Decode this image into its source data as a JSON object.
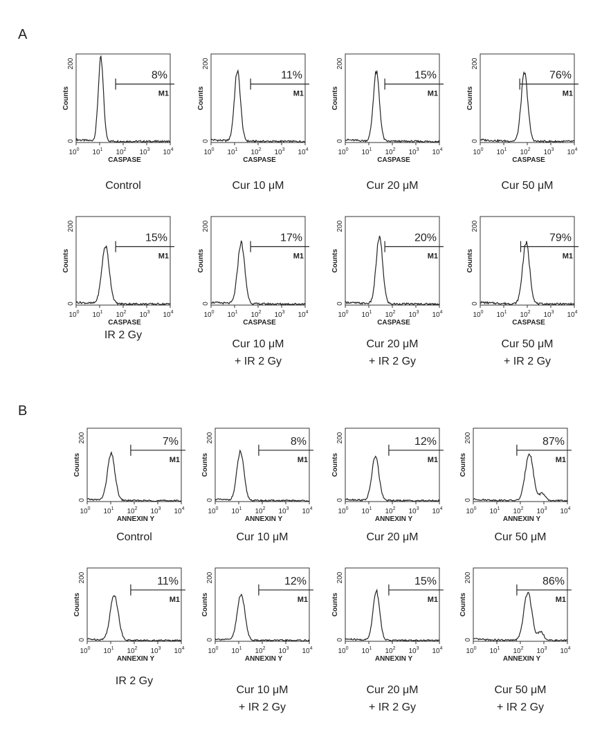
{
  "panels": [
    {
      "letter": "A",
      "rows": [
        {
          "plots": [
            {
              "pct": "8%",
              "gate": "M1",
              "caption": [
                "Control"
              ],
              "peak": 1.05,
              "height": 0.93,
              "width": 0.11,
              "shoulder": 0
            },
            {
              "pct": "11%",
              "gate": "M1",
              "caption": [
                "Cur 10 μM"
              ],
              "peak": 1.12,
              "height": 0.79,
              "width": 0.13,
              "shoulder": 0
            },
            {
              "pct": "15%",
              "gate": "M1",
              "caption": [
                "Cur 20 μM"
              ],
              "peak": 1.32,
              "height": 0.78,
              "width": 0.13,
              "shoulder": 0
            },
            {
              "pct": "76%",
              "gate": "M1",
              "caption": [
                "Cur 50 μM"
              ],
              "peak": 1.88,
              "height": 0.77,
              "width": 0.14,
              "shoulder": 0
            }
          ]
        },
        {
          "plots": [
            {
              "pct": "15%",
              "gate": "M1",
              "caption": [
                "IR 2 Gy"
              ],
              "peak": 1.25,
              "height": 0.65,
              "width": 0.16,
              "shoulder": 0
            },
            {
              "pct": "17%",
              "gate": "M1",
              "caption": [
                "Cur 10 μM",
                "+ IR 2 Gy"
              ],
              "peak": 1.28,
              "height": 0.69,
              "width": 0.15,
              "shoulder": 0
            },
            {
              "pct": "20%",
              "gate": "M1",
              "caption": [
                "Cur 20 μM",
                "+ IR 2 Gy"
              ],
              "peak": 1.45,
              "height": 0.75,
              "width": 0.14,
              "shoulder": 0
            },
            {
              "pct": "79%",
              "gate": "M1",
              "caption": [
                "Cur 50 μM",
                "+ IR 2 Gy"
              ],
              "peak": 1.95,
              "height": 0.69,
              "width": 0.15,
              "shoulder": 0
            }
          ]
        }
      ],
      "axes": {
        "ylabel": "Counts",
        "xlabel": "CASPASE",
        "y_ticks": [
          "0",
          "200"
        ],
        "x_tick_base": "10",
        "x_tick_exponents": [
          "0",
          "1",
          "2",
          "3",
          "4"
        ],
        "gate_start": [
          1.68,
          1.68,
          1.68,
          1.68,
          1.68,
          1.68,
          1.68,
          1.72
        ]
      }
    },
    {
      "letter": "B",
      "rows": [
        {
          "plots": [
            {
              "pct": "7%",
              "gate": "M1",
              "caption": [
                "Control"
              ],
              "peak": 1.02,
              "height": 0.63,
              "width": 0.16,
              "shoulder": 0
            },
            {
              "pct": "8%",
              "gate": "M1",
              "caption": [
                "Cur 10 μM"
              ],
              "peak": 1.07,
              "height": 0.66,
              "width": 0.15,
              "shoulder": 0
            },
            {
              "pct": "12%",
              "gate": "M1",
              "caption": [
                "Cur 20 μM"
              ],
              "peak": 1.28,
              "height": 0.6,
              "width": 0.15,
              "shoulder": 0
            },
            {
              "pct": "87%",
              "gate": "M1",
              "caption": [
                "Cur 50 μM"
              ],
              "peak": 2.38,
              "height": 0.65,
              "width": 0.17,
              "shoulder": 0.1
            }
          ]
        },
        {
          "plots": [
            {
              "pct": "11%",
              "gate": "M1",
              "caption": [
                "IR 2 Gy"
              ],
              "peak": 1.15,
              "height": 0.62,
              "width": 0.17,
              "shoulder": 0
            },
            {
              "pct": "12%",
              "gate": "M1",
              "caption": [
                "Cur 10 μM",
                "+ IR 2 Gy"
              ],
              "peak": 1.1,
              "height": 0.63,
              "width": 0.16,
              "shoulder": 0
            },
            {
              "pct": "15%",
              "gate": "M1",
              "caption": [
                "Cur 20 μM",
                "+ IR 2 Gy"
              ],
              "peak": 1.32,
              "height": 0.68,
              "width": 0.14,
              "shoulder": 0
            },
            {
              "pct": "86%",
              "gate": "M1",
              "caption": [
                "Cur 50 μM",
                "+ IR 2 Gy"
              ],
              "peak": 2.32,
              "height": 0.66,
              "width": 0.17,
              "shoulder": 0.12
            }
          ]
        }
      ],
      "axes": {
        "ylabel": "Counts",
        "xlabel": "ANNEXIN Y",
        "y_ticks": [
          "0",
          "200"
        ],
        "x_tick_base": "10",
        "x_tick_exponents": [
          "0",
          "1",
          "2",
          "3",
          "4"
        ],
        "gate_start": [
          1.85,
          1.85,
          1.85,
          1.85,
          1.85,
          1.85,
          1.85,
          1.85
        ]
      }
    }
  ],
  "chart_data": [
    {
      "type": "histogram",
      "panel": "A",
      "xlabel": "CASPASE",
      "ylabel": "Counts",
      "x_scale": "log",
      "xlim": [
        1,
        10000
      ],
      "ylim": [
        0,
        200
      ],
      "grid": false,
      "gate_label": "M1",
      "series": [
        {
          "name": "Control",
          "gated_percent": 8
        },
        {
          "name": "Cur 10 μM",
          "gated_percent": 11
        },
        {
          "name": "Cur 20 μM",
          "gated_percent": 15
        },
        {
          "name": "Cur 50 μM",
          "gated_percent": 76
        },
        {
          "name": "IR 2 Gy",
          "gated_percent": 15
        },
        {
          "name": "Cur 10 μM + IR 2 Gy",
          "gated_percent": 17
        },
        {
          "name": "Cur 20 μM + IR 2 Gy",
          "gated_percent": 20
        },
        {
          "name": "Cur 50 μM + IR 2 Gy",
          "gated_percent": 79
        }
      ]
    },
    {
      "type": "histogram",
      "panel": "B",
      "xlabel": "ANNEXIN Y",
      "ylabel": "Counts",
      "x_scale": "log",
      "xlim": [
        1,
        10000
      ],
      "ylim": [
        0,
        200
      ],
      "grid": false,
      "gate_label": "M1",
      "series": [
        {
          "name": "Control",
          "gated_percent": 7
        },
        {
          "name": "Cur 10 μM",
          "gated_percent": 8
        },
        {
          "name": "Cur 20 μM",
          "gated_percent": 12
        },
        {
          "name": "Cur 50 μM",
          "gated_percent": 87
        },
        {
          "name": "IR 2 Gy",
          "gated_percent": 11
        },
        {
          "name": "Cur 10 μM + IR 2 Gy",
          "gated_percent": 12
        },
        {
          "name": "Cur 20 μM + IR 2 Gy",
          "gated_percent": 15
        },
        {
          "name": "Cur 50 μM + IR 2 Gy",
          "gated_percent": 86
        }
      ]
    }
  ]
}
